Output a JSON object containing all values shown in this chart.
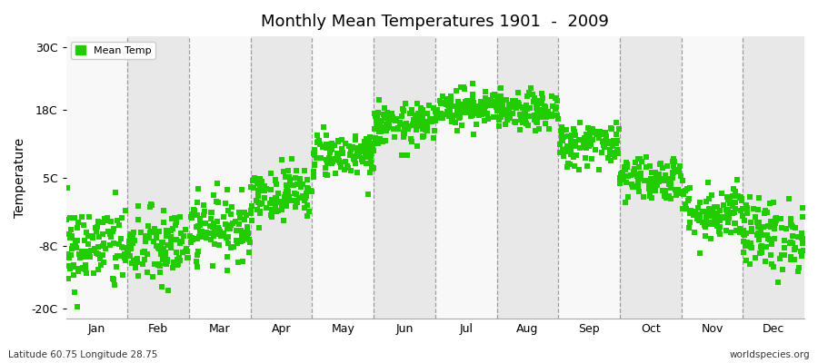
{
  "title": "Monthly Mean Temperatures 1901  -  2009",
  "ylabel": "Temperature",
  "dot_color": "#22CC00",
  "bg_color": "#F0F0F0",
  "band_color_light": "#F8F8F8",
  "band_color_dark": "#E8E8E8",
  "yticks": [
    -20,
    -8,
    5,
    18,
    30
  ],
  "ytick_labels": [
    "-20C",
    "-8C",
    "5C",
    "18C",
    "30C"
  ],
  "ylim": [
    -22,
    32
  ],
  "months": [
    "Jan",
    "Feb",
    "Mar",
    "Apr",
    "May",
    "Jun",
    "Jul",
    "Aug",
    "Sep",
    "Oct",
    "Nov",
    "Dec"
  ],
  "month_means": [
    -8.5,
    -8.5,
    -4.5,
    2.0,
    9.5,
    15.0,
    18.5,
    17.5,
    11.5,
    5.0,
    -1.5,
    -6.0
  ],
  "month_stds": [
    4.2,
    3.8,
    3.0,
    2.5,
    2.2,
    2.0,
    1.8,
    1.8,
    2.2,
    2.2,
    2.8,
    3.5
  ],
  "n_years": 109,
  "legend_label": "Mean Temp",
  "bottom_left": "Latitude 60.75 Longitude 28.75",
  "bottom_right": "worldspecies.org",
  "marker_size": 18,
  "dpi": 100
}
